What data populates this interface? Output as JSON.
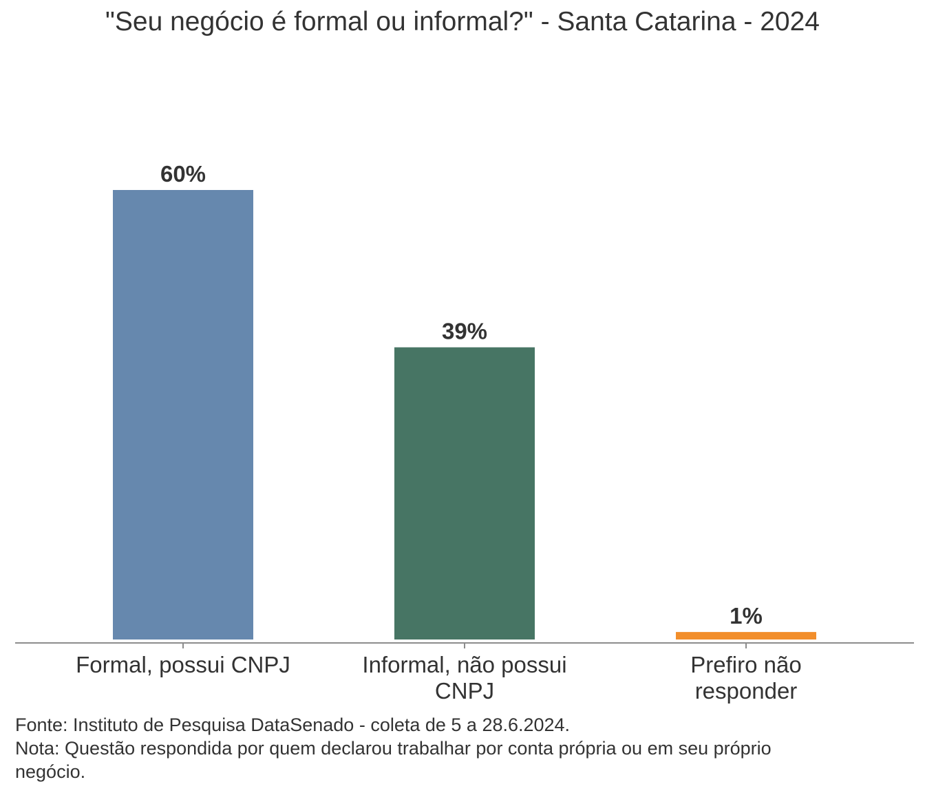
{
  "chart_data": {
    "type": "bar",
    "title": "\"Seu negócio é formal ou informal?\" - Santa Catarina - 2024",
    "categories": [
      [
        "Formal, possui CNPJ"
      ],
      [
        "Informal, não possui",
        "CNPJ"
      ],
      [
        "Prefiro não",
        "responder"
      ]
    ],
    "values": [
      60,
      39,
      1
    ],
    "value_labels": [
      "60%",
      "39%",
      "1%"
    ],
    "colors": [
      "#6688ae",
      "#477564",
      "#f28e2b"
    ],
    "ylim": [
      0,
      60
    ],
    "xlabel": "",
    "ylabel": "",
    "grid": false,
    "legend": "none"
  },
  "footer": {
    "source": "Fonte: Instituto de Pesquisa DataSenado - coleta de 5 a 28.6.2024.",
    "note": "Nota: Questão respondida por quem declarou trabalhar por conta própria ou em seu próprio negócio."
  }
}
